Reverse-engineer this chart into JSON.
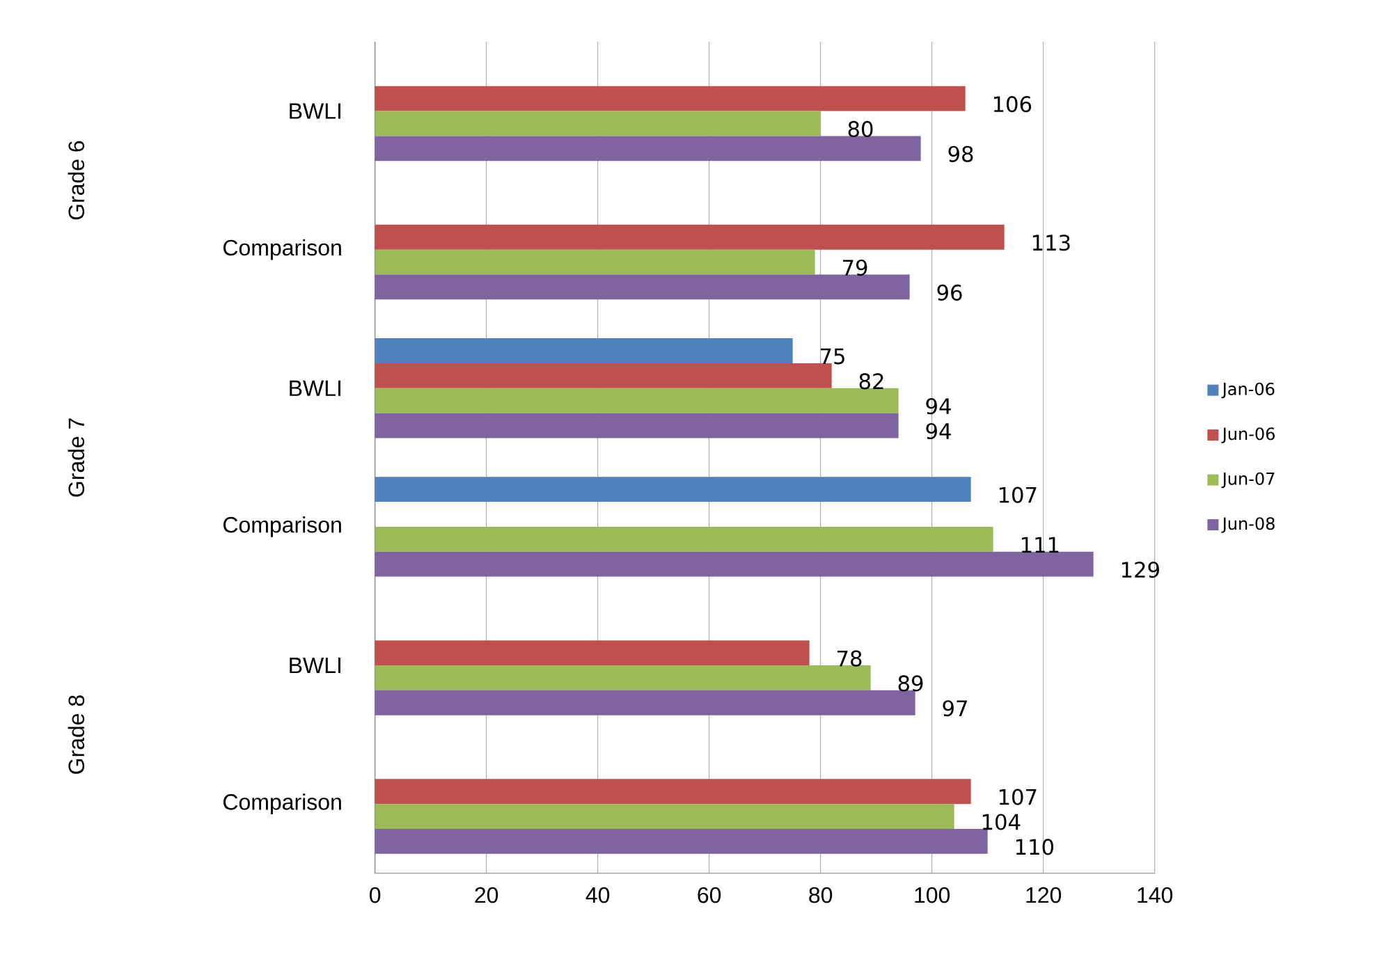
{
  "chart_data": {
    "type": "bar",
    "orientation": "horizontal",
    "categories": [
      "BWLI",
      "Comparison",
      "BWLI",
      "Comparison",
      "BWLI",
      "Comparison"
    ],
    "series": [
      {
        "name": "Jan-06",
        "color": "#4f81bd",
        "values": [
          null,
          null,
          75,
          107,
          null,
          null
        ]
      },
      {
        "name": "Jun-06",
        "color": "#c0504d",
        "values": [
          106,
          113,
          82,
          null,
          78,
          107
        ]
      },
      {
        "name": "Jun-07",
        "color": "#9bbb59",
        "values": [
          80,
          79,
          94,
          111,
          89,
          104
        ]
      },
      {
        "name": "Jun-08",
        "color": "#8064a2",
        "values": [
          98,
          96,
          94,
          129,
          97,
          110
        ]
      }
    ],
    "annotations": [
      "Grade 6",
      "Grade 7",
      "Grade 8"
    ],
    "xlim": [
      0,
      140
    ],
    "xticks": [
      0,
      20,
      40,
      60,
      80,
      100,
      120,
      140
    ],
    "grid": "x",
    "legend": "right",
    "data_labels": true
  }
}
